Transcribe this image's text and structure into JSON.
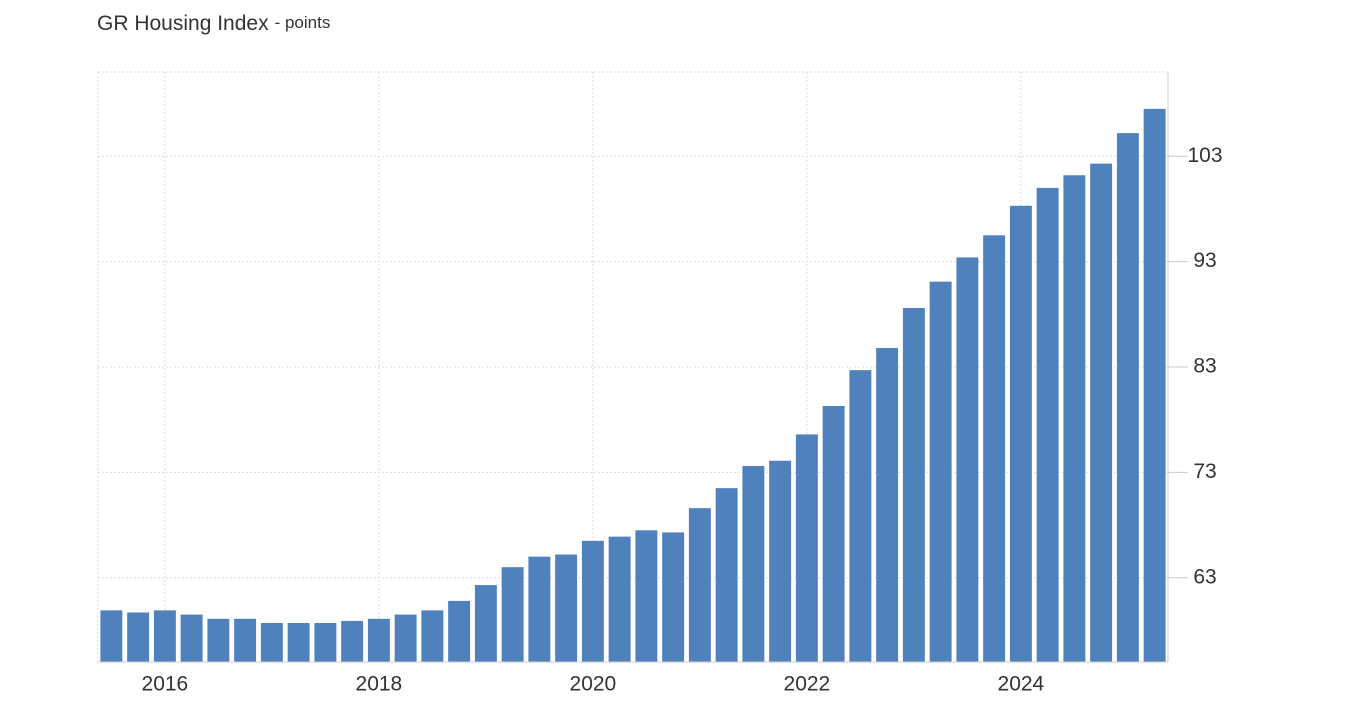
{
  "chart_data": {
    "type": "bar",
    "title": "GR Housing Index",
    "subtitle": "- points",
    "categories": [
      null,
      null,
      "2016",
      null,
      null,
      null,
      null,
      null,
      null,
      null,
      "2018",
      null,
      null,
      null,
      null,
      null,
      null,
      null,
      "2020",
      null,
      null,
      null,
      null,
      null,
      null,
      null,
      "2022",
      null,
      null,
      null,
      null,
      null,
      null,
      null,
      "2024",
      null,
      null,
      null,
      null,
      null
    ],
    "values": [
      59.9,
      59.7,
      59.9,
      59.5,
      59.1,
      59.1,
      58.7,
      58.7,
      58.7,
      58.9,
      59.1,
      59.5,
      59.9,
      60.8,
      62.3,
      64.0,
      65.0,
      65.2,
      66.5,
      66.9,
      67.5,
      67.3,
      69.6,
      71.5,
      73.6,
      74.1,
      76.6,
      79.3,
      82.7,
      84.8,
      88.6,
      91.1,
      93.4,
      95.5,
      98.3,
      100.0,
      101.2,
      102.3,
      105.2,
      107.5
    ],
    "color": "#4f81bd",
    "ylim": [
      55,
      111
    ],
    "yticks": [
      63,
      73,
      83,
      93,
      103
    ],
    "grid": true
  }
}
